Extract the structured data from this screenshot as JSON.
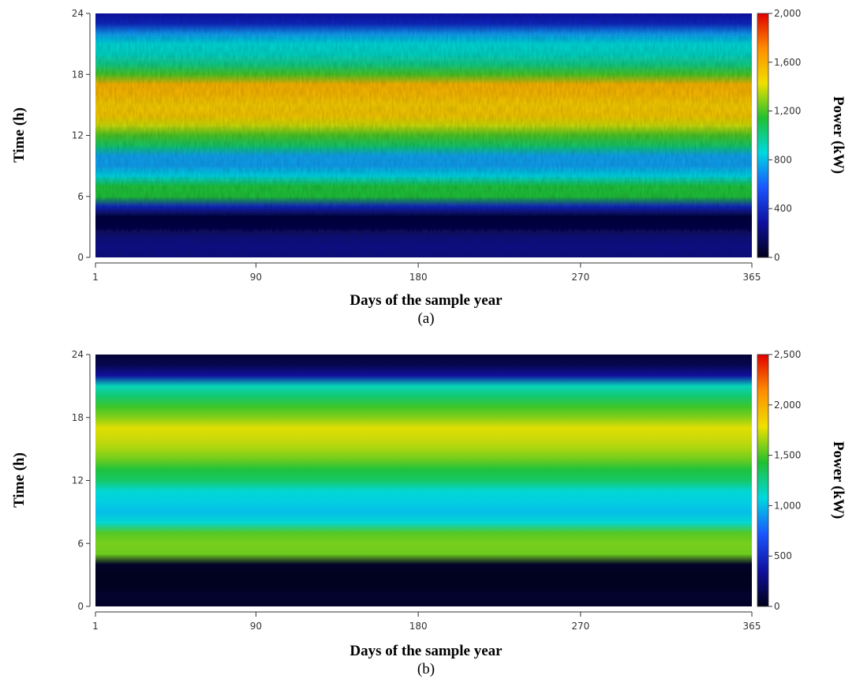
{
  "chart_data": [
    {
      "type": "heatmap",
      "panel_label": "(a)",
      "xlabel": "Days of the sample year",
      "ylabel": "Time (h)",
      "colorbar_label": "Power (kW)",
      "xlim": [
        1,
        365
      ],
      "ylim": [
        0,
        24
      ],
      "x_ticks": [
        "1",
        "90",
        "180",
        "270",
        "365"
      ],
      "y_ticks": [
        "0",
        "6",
        "12",
        "18",
        "24"
      ],
      "color_range": [
        0,
        2000
      ],
      "colorbar_ticks": [
        "0",
        "400",
        "800",
        "1,200",
        "1,600",
        "2,000"
      ],
      "colorscale": [
        "#000018",
        "#1010a0",
        "#1a55ff",
        "#00d8e0",
        "#20c030",
        "#f0e000",
        "#ff8c00",
        "#e00000"
      ],
      "variation": "low",
      "hours": [
        0,
        1,
        2,
        3,
        4,
        5,
        6,
        7,
        8,
        9,
        10,
        11,
        12,
        13,
        14,
        15,
        16,
        17,
        18,
        19,
        20,
        21,
        22,
        23,
        24
      ],
      "hourly_power_kw": [
        220,
        240,
        210,
        100,
        80,
        380,
        1130,
        1120,
        850,
        730,
        740,
        1050,
        1200,
        1380,
        1520,
        1500,
        1560,
        1580,
        1200,
        1000,
        900,
        870,
        720,
        380,
        300
      ]
    },
    {
      "type": "heatmap",
      "panel_label": "(b)",
      "xlabel": "Days of the sample year",
      "ylabel": "Time (h)",
      "colorbar_label": "Power (kW)",
      "xlim": [
        1,
        365
      ],
      "ylim": [
        0,
        24
      ],
      "x_ticks": [
        "1",
        "90",
        "180",
        "270",
        "365"
      ],
      "y_ticks": [
        "0",
        "6",
        "12",
        "18",
        "24"
      ],
      "color_range": [
        0,
        2500
      ],
      "colorbar_ticks": [
        "0",
        "500",
        "1,000",
        "1,500",
        "2,000",
        "2,500"
      ],
      "colorscale": [
        "#000018",
        "#1010a0",
        "#1a55ff",
        "#00d8e0",
        "#20c030",
        "#f0e000",
        "#ff8c00",
        "#e00000"
      ],
      "variation": "none",
      "hours": [
        0,
        1,
        2,
        3,
        4,
        5,
        6,
        7,
        8,
        9,
        10,
        11,
        12,
        13,
        14,
        15,
        16,
        17,
        18,
        19,
        20,
        21,
        22,
        23,
        24
      ],
      "hourly_power_kw": [
        40,
        60,
        20,
        20,
        40,
        1560,
        1580,
        1520,
        1100,
        1000,
        1050,
        1100,
        1320,
        1400,
        1560,
        1660,
        1720,
        1760,
        1600,
        1480,
        1300,
        1150,
        350,
        150,
        80
      ]
    }
  ]
}
